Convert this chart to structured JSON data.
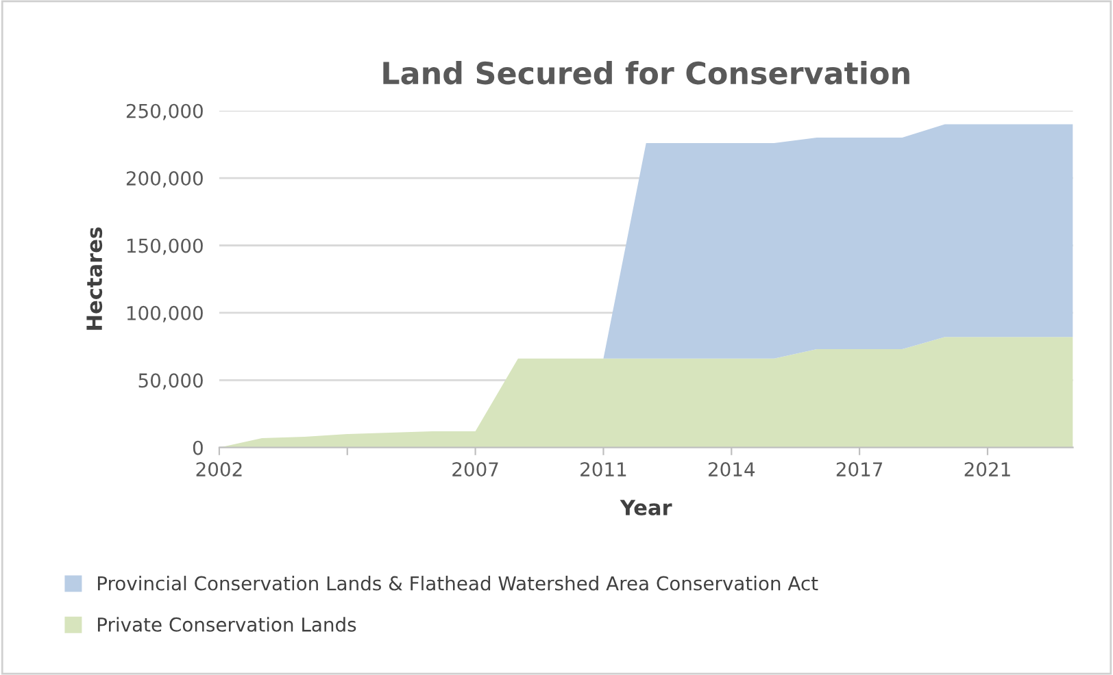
{
  "chart_data": {
    "type": "area",
    "stacked": true,
    "title": "Land Secured for Conservation",
    "xlabel": "Year",
    "ylabel": "Hectares",
    "categories": [
      "2002",
      null,
      null,
      null,
      null,
      null,
      "2007",
      null,
      null,
      "2011",
      null,
      null,
      "2014",
      null,
      null,
      "2017",
      null,
      null,
      "2021",
      null,
      null
    ],
    "series": [
      {
        "name": "Private Conservation Lands",
        "color": "#d7e4bd",
        "values": [
          0,
          7000,
          8000,
          10000,
          11000,
          12000,
          12000,
          66000,
          66000,
          66000,
          66000,
          66000,
          66000,
          66000,
          73000,
          73000,
          73000,
          82000,
          82000,
          82000,
          82000
        ]
      },
      {
        "name": "Provincial Conservation Lands & Flathead Watershed Area Conservation Act",
        "color": "#b9cde5",
        "values": [
          0,
          0,
          0,
          0,
          0,
          0,
          0,
          0,
          0,
          0,
          160000,
          160000,
          160000,
          160000,
          157000,
          157000,
          157000,
          158000,
          158000,
          158000,
          158000
        ]
      }
    ],
    "ylim": [
      0,
      250000
    ],
    "yticks": [
      {
        "value": 0,
        "label": "0"
      },
      {
        "value": 50000,
        "label": "50,000"
      },
      {
        "value": 100000,
        "label": "100,000"
      },
      {
        "value": 150000,
        "label": "150,000"
      },
      {
        "value": 200000,
        "label": "200,000"
      },
      {
        "value": 250000,
        "label": "250,000"
      }
    ],
    "grid": "y",
    "legend": "bottom"
  }
}
